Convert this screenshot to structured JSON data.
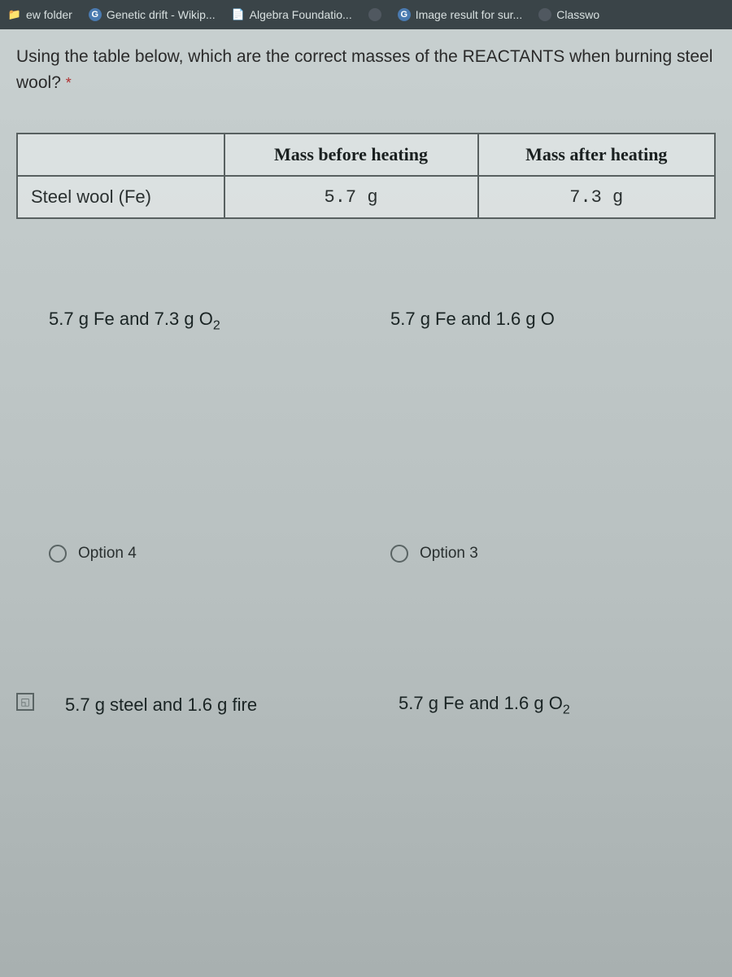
{
  "bookmarks": [
    {
      "icon": "folder",
      "label": "ew folder"
    },
    {
      "icon": "g",
      "label": "Genetic drift - Wikip..."
    },
    {
      "icon": "doc",
      "label": "Algebra Foundatio..."
    },
    {
      "icon": "circle",
      "label": ""
    },
    {
      "icon": "g",
      "label": "Image result for sur..."
    },
    {
      "icon": "circle",
      "label": "Classwo"
    }
  ],
  "question": {
    "text": "Using the table below, which are the correct masses of the REACTANTS when burning steel wool?",
    "required": "*"
  },
  "table": {
    "columns": [
      "",
      "Mass before heating",
      "Mass after heating"
    ],
    "rows": [
      {
        "label": "Steel wool (Fe)",
        "before": "5.7 g",
        "after": "7.3 g"
      }
    ]
  },
  "options_row1": [
    {
      "text_plain": "5.7 g Fe and 7.3 g O",
      "subscript": "2"
    },
    {
      "text_plain": "5.7 g Fe and 1.6 g O",
      "subscript": ""
    }
  ],
  "options_row2": [
    {
      "label": "Option 4"
    },
    {
      "label": "Option 3"
    }
  ],
  "options_row3": [
    {
      "text_plain": "5.7 g steel and 1.6 g fire",
      "subscript": ""
    },
    {
      "text_plain": "5.7 g Fe and 1.6 g O",
      "subscript": "2"
    }
  ],
  "colors": {
    "bookmark_bar_bg": "#3a4448",
    "bookmark_text": "#d8e0e0",
    "question_text": "#2a2a2a",
    "table_border": "#586060",
    "radio_border": "#5a6464"
  }
}
